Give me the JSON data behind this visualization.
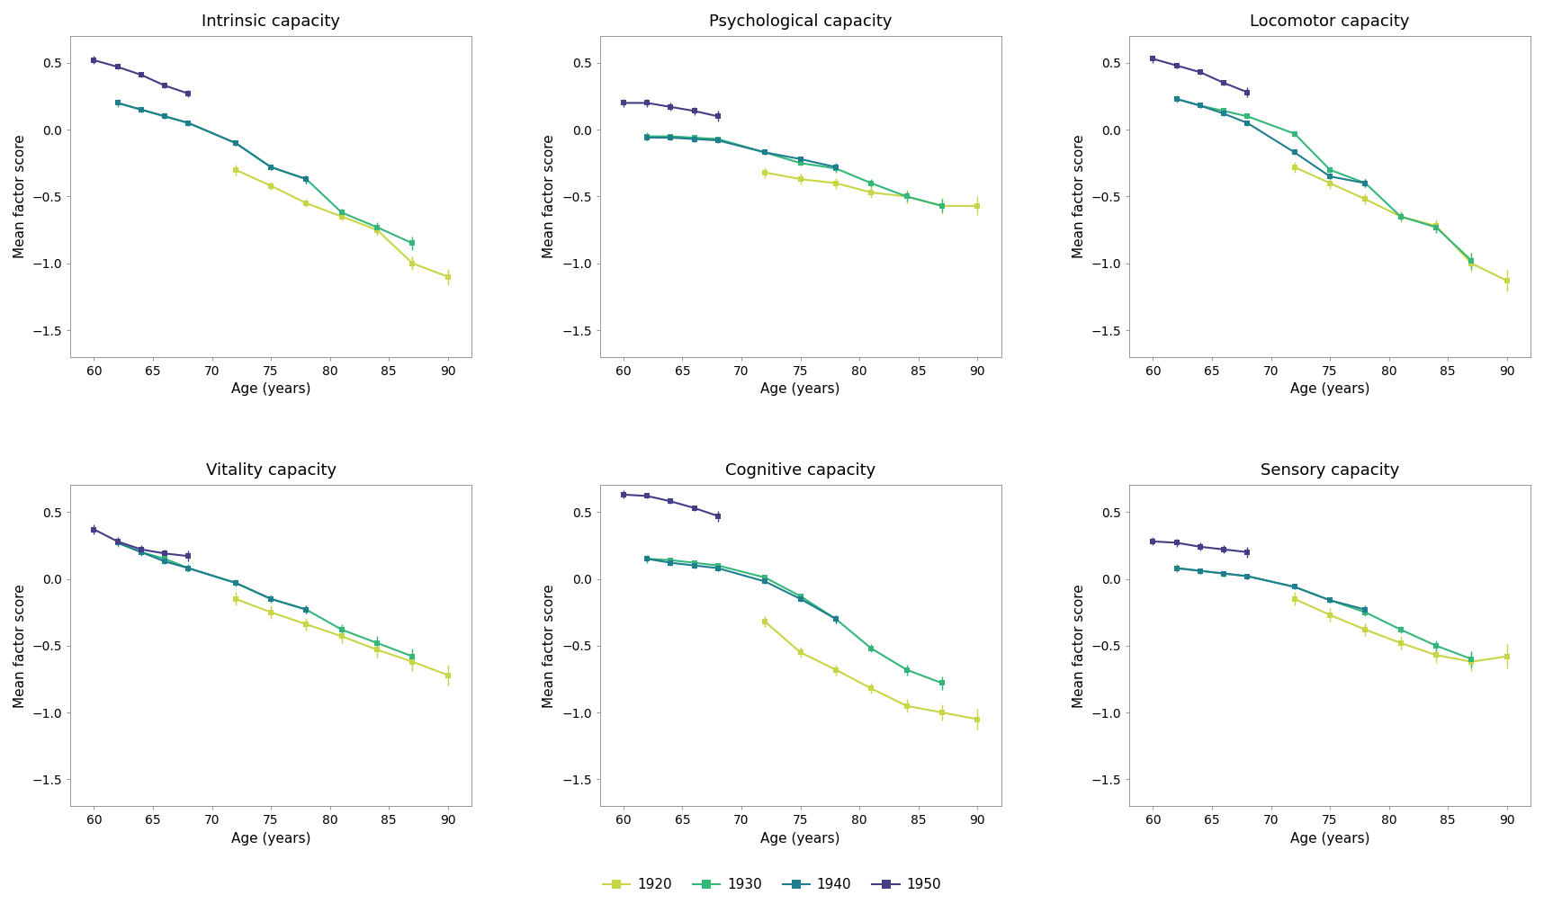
{
  "cohort_colors": {
    "1920": "#c8d645",
    "1930": "#35b779",
    "1940": "#1f7f8e",
    "1950": "#433e85"
  },
  "cohort_labels": [
    "1920",
    "1930",
    "1940",
    "1950"
  ],
  "subplots": [
    {
      "title": "Intrinsic capacity",
      "data": {
        "1920": {
          "ages": [
            72,
            75,
            78,
            81,
            84,
            87,
            90
          ],
          "y": [
            -0.3,
            -0.42,
            -0.55,
            -0.65,
            -0.75,
            -1.0,
            -1.1
          ],
          "yerr": [
            0.04,
            0.03,
            0.03,
            0.03,
            0.04,
            0.05,
            0.06
          ]
        },
        "1930": {
          "ages": [
            62,
            64,
            66,
            68,
            72,
            75,
            78,
            81,
            84,
            87
          ],
          "y": [
            0.2,
            0.15,
            0.1,
            0.05,
            -0.1,
            -0.28,
            -0.37,
            -0.62,
            -0.73,
            -0.85
          ],
          "yerr": [
            0.03,
            0.02,
            0.02,
            0.02,
            0.02,
            0.02,
            0.03,
            0.03,
            0.04,
            0.05
          ]
        },
        "1940": {
          "ages": [
            62,
            64,
            66,
            68,
            72,
            75,
            78
          ],
          "y": [
            0.2,
            0.15,
            0.1,
            0.05,
            -0.1,
            -0.28,
            -0.37
          ],
          "yerr": [
            0.02,
            0.02,
            0.02,
            0.02,
            0.02,
            0.02,
            0.03
          ]
        },
        "1950": {
          "ages": [
            60,
            62,
            64,
            66,
            68
          ],
          "y": [
            0.52,
            0.47,
            0.41,
            0.33,
            0.27
          ],
          "yerr": [
            0.03,
            0.02,
            0.02,
            0.02,
            0.03
          ]
        }
      }
    },
    {
      "title": "Psychological capacity",
      "data": {
        "1920": {
          "ages": [
            72,
            75,
            78,
            81,
            84,
            87,
            90
          ],
          "y": [
            -0.32,
            -0.37,
            -0.4,
            -0.47,
            -0.5,
            -0.57,
            -0.57
          ],
          "yerr": [
            0.04,
            0.04,
            0.04,
            0.04,
            0.05,
            0.06,
            0.07
          ]
        },
        "1930": {
          "ages": [
            62,
            64,
            66,
            68,
            72,
            75,
            78,
            81,
            84,
            87
          ],
          "y": [
            -0.05,
            -0.05,
            -0.06,
            -0.07,
            -0.17,
            -0.25,
            -0.29,
            -0.4,
            -0.5,
            -0.57
          ],
          "yerr": [
            0.03,
            0.02,
            0.02,
            0.02,
            0.02,
            0.02,
            0.03,
            0.03,
            0.04,
            0.05
          ]
        },
        "1940": {
          "ages": [
            62,
            64,
            66,
            68,
            72,
            75,
            78
          ],
          "y": [
            -0.06,
            -0.06,
            -0.07,
            -0.08,
            -0.17,
            -0.22,
            -0.28
          ],
          "yerr": [
            0.02,
            0.02,
            0.02,
            0.02,
            0.02,
            0.02,
            0.03
          ]
        },
        "1950": {
          "ages": [
            60,
            62,
            64,
            66,
            68
          ],
          "y": [
            0.2,
            0.2,
            0.17,
            0.14,
            0.1
          ],
          "yerr": [
            0.03,
            0.03,
            0.03,
            0.03,
            0.04
          ]
        }
      }
    },
    {
      "title": "Locomotor capacity",
      "data": {
        "1920": {
          "ages": [
            72,
            75,
            78,
            81,
            84,
            87,
            90
          ],
          "y": [
            -0.28,
            -0.4,
            -0.52,
            -0.65,
            -0.72,
            -1.0,
            -1.13
          ],
          "yerr": [
            0.04,
            0.04,
            0.04,
            0.04,
            0.05,
            0.06,
            0.08
          ]
        },
        "1930": {
          "ages": [
            62,
            64,
            66,
            68,
            72,
            75,
            78,
            81,
            84,
            87
          ],
          "y": [
            0.23,
            0.18,
            0.14,
            0.1,
            -0.03,
            -0.3,
            -0.4,
            -0.65,
            -0.73,
            -0.98
          ],
          "yerr": [
            0.03,
            0.02,
            0.02,
            0.02,
            0.02,
            0.02,
            0.03,
            0.03,
            0.04,
            0.06
          ]
        },
        "1940": {
          "ages": [
            62,
            64,
            66,
            68,
            72,
            75,
            78
          ],
          "y": [
            0.23,
            0.18,
            0.12,
            0.05,
            -0.17,
            -0.35,
            -0.4
          ],
          "yerr": [
            0.02,
            0.02,
            0.02,
            0.02,
            0.02,
            0.02,
            0.03
          ]
        },
        "1950": {
          "ages": [
            60,
            62,
            64,
            66,
            68
          ],
          "y": [
            0.53,
            0.48,
            0.43,
            0.35,
            0.28
          ],
          "yerr": [
            0.03,
            0.02,
            0.02,
            0.02,
            0.04
          ]
        }
      }
    },
    {
      "title": "Vitality capacity",
      "data": {
        "1920": {
          "ages": [
            72,
            75,
            78,
            81,
            84,
            87,
            90
          ],
          "y": [
            -0.15,
            -0.25,
            -0.34,
            -0.43,
            -0.53,
            -0.62,
            -0.72
          ],
          "yerr": [
            0.05,
            0.05,
            0.05,
            0.05,
            0.06,
            0.07,
            0.08
          ]
        },
        "1930": {
          "ages": [
            62,
            64,
            66,
            68,
            72,
            75,
            78,
            81,
            84,
            87
          ],
          "y": [
            0.27,
            0.2,
            0.15,
            0.08,
            -0.03,
            -0.15,
            -0.23,
            -0.38,
            -0.48,
            -0.58
          ],
          "yerr": [
            0.03,
            0.03,
            0.03,
            0.03,
            0.03,
            0.03,
            0.03,
            0.04,
            0.05,
            0.06
          ]
        },
        "1940": {
          "ages": [
            62,
            64,
            66,
            68,
            72,
            75,
            78
          ],
          "y": [
            0.27,
            0.2,
            0.13,
            0.08,
            -0.03,
            -0.15,
            -0.23
          ],
          "yerr": [
            0.02,
            0.02,
            0.02,
            0.02,
            0.02,
            0.02,
            0.03
          ]
        },
        "1950": {
          "ages": [
            60,
            62,
            64,
            66,
            68
          ],
          "y": [
            0.37,
            0.28,
            0.22,
            0.19,
            0.17
          ],
          "yerr": [
            0.04,
            0.03,
            0.03,
            0.03,
            0.04
          ]
        }
      }
    },
    {
      "title": "Cognitive capacity",
      "data": {
        "1920": {
          "ages": [
            72,
            75,
            78,
            81,
            84,
            87,
            90
          ],
          "y": [
            -0.32,
            -0.55,
            -0.68,
            -0.82,
            -0.95,
            -1.0,
            -1.05
          ],
          "yerr": [
            0.04,
            0.04,
            0.04,
            0.04,
            0.05,
            0.06,
            0.08
          ]
        },
        "1930": {
          "ages": [
            62,
            64,
            66,
            68,
            72,
            75,
            78,
            81,
            84,
            87
          ],
          "y": [
            0.15,
            0.14,
            0.12,
            0.1,
            0.01,
            -0.13,
            -0.3,
            -0.52,
            -0.68,
            -0.78
          ],
          "yerr": [
            0.03,
            0.02,
            0.02,
            0.02,
            0.02,
            0.02,
            0.03,
            0.03,
            0.04,
            0.05
          ]
        },
        "1940": {
          "ages": [
            62,
            64,
            66,
            68,
            72,
            75,
            78
          ],
          "y": [
            0.15,
            0.12,
            0.1,
            0.08,
            -0.02,
            -0.15,
            -0.3
          ],
          "yerr": [
            0.02,
            0.02,
            0.02,
            0.02,
            0.02,
            0.02,
            0.03
          ]
        },
        "1950": {
          "ages": [
            60,
            62,
            64,
            66,
            68
          ],
          "y": [
            0.63,
            0.62,
            0.58,
            0.53,
            0.47
          ],
          "yerr": [
            0.03,
            0.02,
            0.02,
            0.02,
            0.04
          ]
        }
      }
    },
    {
      "title": "Sensory capacity",
      "data": {
        "1920": {
          "ages": [
            72,
            75,
            78,
            81,
            84,
            87,
            90
          ],
          "y": [
            -0.15,
            -0.27,
            -0.38,
            -0.48,
            -0.57,
            -0.62,
            -0.58
          ],
          "yerr": [
            0.05,
            0.05,
            0.05,
            0.05,
            0.06,
            0.07,
            0.09
          ]
        },
        "1930": {
          "ages": [
            62,
            64,
            66,
            68,
            72,
            75,
            78,
            81,
            84,
            87
          ],
          "y": [
            0.08,
            0.06,
            0.04,
            0.02,
            -0.06,
            -0.16,
            -0.25,
            -0.38,
            -0.5,
            -0.6
          ],
          "yerr": [
            0.03,
            0.02,
            0.02,
            0.02,
            0.02,
            0.02,
            0.03,
            0.03,
            0.04,
            0.06
          ]
        },
        "1940": {
          "ages": [
            62,
            64,
            66,
            68,
            72,
            75,
            78
          ],
          "y": [
            0.08,
            0.06,
            0.04,
            0.02,
            -0.06,
            -0.16,
            -0.23
          ],
          "yerr": [
            0.02,
            0.02,
            0.02,
            0.02,
            0.02,
            0.02,
            0.03
          ]
        },
        "1950": {
          "ages": [
            60,
            62,
            64,
            66,
            68
          ],
          "y": [
            0.28,
            0.27,
            0.24,
            0.22,
            0.2
          ],
          "yerr": [
            0.03,
            0.03,
            0.03,
            0.03,
            0.04
          ]
        }
      }
    }
  ],
  "ylabel": "Mean factor score",
  "xlabel": "Age (years)",
  "xlim": [
    58,
    92
  ],
  "xticks": [
    60,
    65,
    70,
    75,
    80,
    85,
    90
  ],
  "ylim": [
    -1.7,
    0.7
  ],
  "yticks": [
    -1.5,
    -1.0,
    -0.5,
    0.0,
    0.5
  ],
  "background_color": "#ffffff",
  "figure_background": "#ffffff",
  "title_fontsize": 13,
  "label_fontsize": 11,
  "tick_fontsize": 10,
  "legend_fontsize": 11,
  "markersize": 4,
  "linewidth": 1.5,
  "capsize": 2,
  "elinewidth": 1.0
}
